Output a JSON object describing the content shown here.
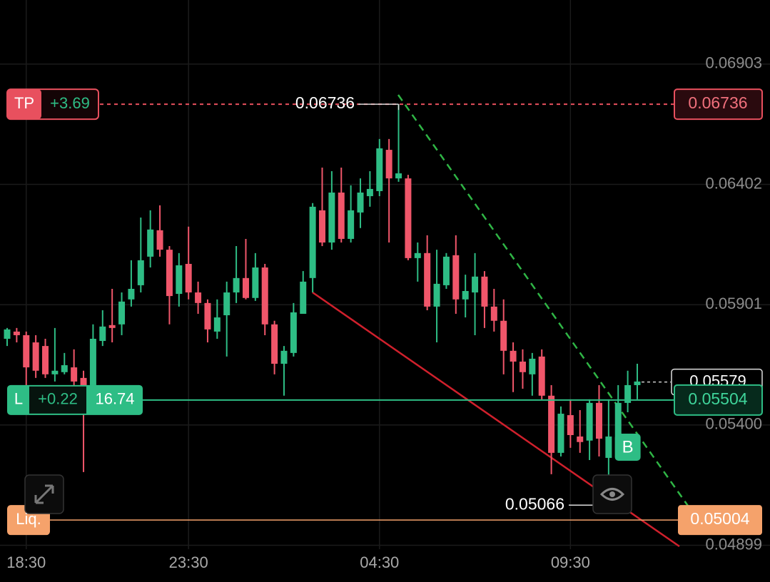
{
  "chart_data": {
    "type": "candlestick",
    "categories": [
      null,
      null,
      "18:30",
      null,
      null,
      null,
      null,
      null,
      null,
      null,
      null,
      null,
      null,
      null,
      null,
      null,
      null,
      null,
      null,
      "23:30",
      null,
      null,
      null,
      null,
      null,
      null,
      null,
      null,
      null,
      null,
      null,
      null,
      null,
      null,
      null,
      null,
      null,
      null,
      null,
      "04:30",
      null,
      null,
      null,
      null,
      null,
      null,
      null,
      null,
      null,
      null,
      null,
      null,
      null,
      null,
      null,
      null,
      null,
      null,
      null,
      "09:30",
      null,
      null,
      null,
      null,
      null,
      null,
      null
    ],
    "open": [
      0.05759,
      0.05789,
      0.05774,
      0.05744,
      0.05729,
      0.05611,
      0.0562,
      0.0564,
      0.05596,
      0.05566,
      0.0575,
      0.05816,
      0.05819,
      0.05923,
      0.05982,
      0.06101,
      0.06211,
      0.0613,
      0.05946,
      0.06071,
      0.05952,
      0.05908,
      0.05789,
      0.05857,
      0.05952,
      0.06012,
      0.05929,
      0.06056,
      0.05819,
      0.05655,
      0.057,
      0.05863,
      0.06012,
      0.06294,
      0.0616,
      0.06368,
      0.06175,
      0.06285,
      0.06353,
      0.06374,
      0.06546,
      0.06427,
      0.06427,
      0.06095,
      0.06116,
      0.05893,
      0.05982,
      0.06107,
      0.05923,
      0.05952,
      0.06018,
      0.05893,
      0.05834,
      0.05709,
      0.05664,
      0.05611,
      0.05685,
      0.05522,
      0.05284,
      0.05441,
      0.05352,
      0.05335,
      0.05492,
      0.05263,
      0.05352,
      0.05492,
      0.05566
    ],
    "high": [
      0.05804,
      0.05804,
      0.05789,
      0.05774,
      0.05759,
      0.05804,
      0.057,
      0.05715,
      0.05626,
      0.05819,
      0.05878,
      0.05967,
      0.05952,
      0.06086,
      0.06264,
      0.06294,
      0.06315,
      0.06145,
      0.06116,
      0.06226,
      0.05997,
      0.05923,
      0.05923,
      0.05997,
      0.06145,
      0.06175,
      0.06116,
      0.06071,
      0.05834,
      0.05729,
      0.05908,
      0.06041,
      0.06324,
      0.06472,
      0.06457,
      0.06472,
      0.06398,
      0.06427,
      0.06457,
      0.06591,
      0.06591,
      0.06736,
      0.06442,
      0.0616,
      0.0619,
      0.0613,
      0.06116,
      0.0619,
      0.06026,
      0.06116,
      0.06041,
      0.05967,
      0.05923,
      0.05744,
      0.05715,
      0.057,
      0.05715,
      0.05566,
      0.05477,
      0.05507,
      0.05462,
      0.05507,
      0.05566,
      0.05507,
      0.05566,
      0.05626,
      0.05655
    ],
    "low": [
      0.05729,
      0.05744,
      0.05566,
      0.05596,
      0.05596,
      0.05581,
      0.05611,
      0.05566,
      0.05204,
      0.05551,
      0.05729,
      0.05744,
      0.05774,
      0.05893,
      0.05952,
      0.06056,
      0.06101,
      0.05819,
      0.05893,
      0.05923,
      0.05863,
      0.05744,
      0.05759,
      0.05685,
      0.05908,
      0.05923,
      0.05917,
      0.05774,
      0.05611,
      0.05522,
      0.05685,
      0.05863,
      0.05952,
      0.06145,
      0.0613,
      0.0616,
      0.0616,
      0.0622,
      0.06309,
      0.06353,
      0.0616,
      0.06413,
      0.06086,
      0.05997,
      0.05878,
      0.05744,
      0.05967,
      0.05863,
      0.05848,
      0.05774,
      0.05804,
      0.05789,
      0.05611,
      0.05537,
      0.05551,
      0.05522,
      0.05507,
      0.05195,
      0.05269,
      0.05305,
      0.05284,
      0.05254,
      0.05269,
      0.05066,
      0.05343,
      0.05453,
      0.05507
    ],
    "close": [
      0.05798,
      0.05774,
      0.0564,
      0.05626,
      0.05611,
      0.05626,
      0.05649,
      0.05581,
      0.05566,
      0.05759,
      0.0581,
      0.05804,
      0.05914,
      0.05967,
      0.06086,
      0.06214,
      0.0613,
      0.05937,
      0.06065,
      0.05952,
      0.05908,
      0.05798,
      0.05848,
      0.05952,
      0.06012,
      0.05929,
      0.06056,
      0.05819,
      0.05655,
      0.05709,
      0.05869,
      0.05997,
      0.06309,
      0.0616,
      0.06368,
      0.06175,
      0.06294,
      0.06368,
      0.06383,
      0.06552,
      0.06427,
      0.06448,
      0.06095,
      0.06116,
      0.05893,
      0.05988,
      0.06101,
      0.05923,
      0.05958,
      0.06018,
      0.05893,
      0.05834,
      0.05709,
      0.05664,
      0.0562,
      0.05676,
      0.05522,
      0.05284,
      0.05447,
      0.05358,
      0.05329,
      0.05492,
      0.05343,
      0.05352,
      0.05492,
      0.05566,
      0.05581
    ],
    "up_color": "#2ebd85",
    "down_color": "#f0566a",
    "ylim": [
      0.04853,
      0.0717
    ],
    "yticks": [
      0.06903,
      0.06402,
      0.05901,
      {
        "value": 0.054,
        "label": "0.05400"
      },
      0.04899
    ],
    "grid": true,
    "take_profit": {
      "tag": "TP",
      "pnl": "+3.69",
      "price": 0.06736
    },
    "position": {
      "tag": "L",
      "pnl": "+0.22",
      "size": "16.74",
      "price": 0.05504
    },
    "liquidation": {
      "tag": "Liq.",
      "price": 0.05004
    },
    "last_price": 0.05579,
    "trade_marker": "B"
  }
}
